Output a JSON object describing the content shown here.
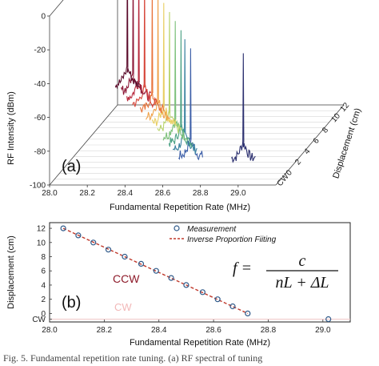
{
  "chart_data": [
    {
      "panel": "(a)",
      "type": "line",
      "xlabel": "Fundamental Repetition Rate (MHz)",
      "ylabel": "RF Intensity (dBm)",
      "zlabel": "Displacement (cm)",
      "xlim": [
        28.0,
        29.2
      ],
      "ylim": [
        -100,
        0
      ],
      "x_ticks": [
        "28.0",
        "28.2",
        "28.4",
        "28.6",
        "28.8",
        "29.0"
      ],
      "y_ticks": [
        "0",
        "-20",
        "-40",
        "-60",
        "-80",
        "-100"
      ],
      "depth_ticks": [
        "CW",
        "0",
        "2",
        "4",
        "6",
        "8",
        "10",
        "12"
      ],
      "peak_frequencies_mhz": [
        28.07,
        28.13,
        28.19,
        28.25,
        28.32,
        28.38,
        28.44,
        28.5,
        28.56,
        28.62,
        28.67,
        28.73,
        29.02
      ],
      "peak_db": -5,
      "noise_floor_db": -85,
      "series_colors": [
        "#5a0a2a",
        "#8e1b3a",
        "#b8283c",
        "#d6463a",
        "#e8733a",
        "#efa24a",
        "#e9cf64",
        "#b9d36c",
        "#7cc07a",
        "#4ea386",
        "#3a82a0",
        "#3d5fa8",
        "#2a2e6e"
      ]
    },
    {
      "panel": "(b)",
      "type": "scatter",
      "xlabel": "Fundamental Repetition Rate (MHz)",
      "ylabel": "Displacement (cm)",
      "xlim": [
        28.0,
        29.1
      ],
      "ylim": [
        -1.2,
        12.8
      ],
      "x_ticks": [
        "28.0",
        "28.2",
        "28.4",
        "28.6",
        "28.8",
        "29.0"
      ],
      "y_ticks": [
        "CW",
        "0",
        "2",
        "4",
        "6",
        "8",
        "10",
        "12"
      ],
      "series": [
        {
          "name": "Measurement",
          "x": [
            28.05,
            28.105,
            28.16,
            28.215,
            28.275,
            28.335,
            28.39,
            28.445,
            28.5,
            28.56,
            28.615,
            28.67,
            28.725,
            29.02
          ],
          "y": [
            12,
            11,
            10,
            9,
            8,
            7,
            6,
            5,
            4,
            3,
            2,
            1,
            0,
            -0.8
          ],
          "color": "#2f5a8a"
        },
        {
          "name": "Inverse Proportion Fiiting",
          "x": [
            28.05,
            28.725
          ],
          "y": [
            12,
            0
          ],
          "color": "#c0392b"
        }
      ],
      "annotations": {
        "ccw": "CCW",
        "cw": "CW"
      },
      "formula": {
        "lhs": "f =",
        "numerator": "c",
        "denominator": "nL + ΔL"
      }
    }
  ],
  "caption": "Fig. 5. Fundamental repetition rate tuning. (a) RF spectral of tuning"
}
